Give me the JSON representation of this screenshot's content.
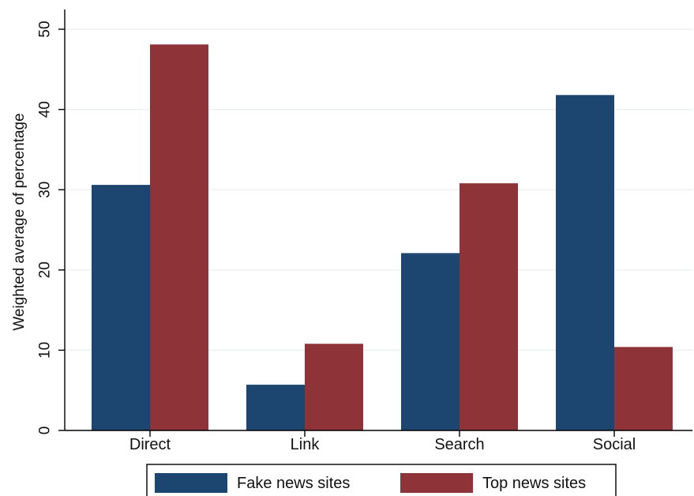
{
  "chart_data": {
    "type": "bar",
    "title": "",
    "xlabel": "",
    "ylabel": "Weighted average of percentage",
    "categories": [
      "Direct",
      "Link",
      "Search",
      "Social"
    ],
    "series": [
      {
        "name": "Fake news sites",
        "values": [
          30.6,
          5.7,
          22.1,
          41.8
        ],
        "color": "#1c4570"
      },
      {
        "name": "Top news sites",
        "values": [
          48.1,
          10.8,
          30.8,
          10.4
        ],
        "color": "#8e3338"
      }
    ],
    "ylim": [
      0,
      50
    ],
    "yticks": [
      0,
      10,
      20,
      30,
      40,
      50
    ],
    "grid": true,
    "legend_position": "bottom"
  }
}
